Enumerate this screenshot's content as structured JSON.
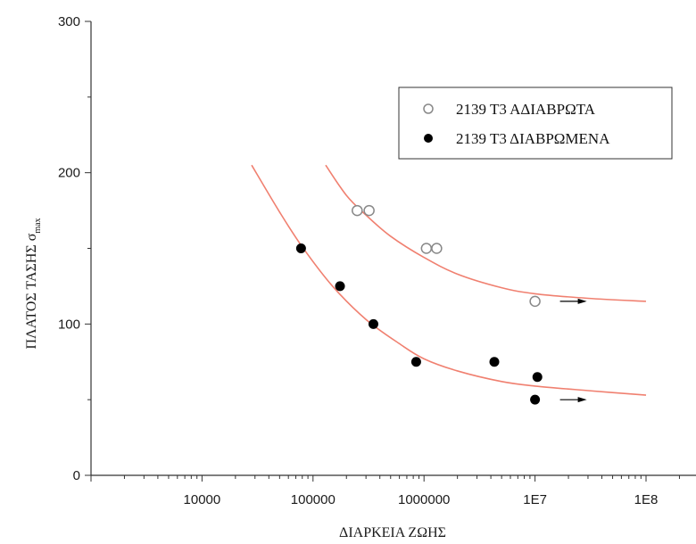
{
  "chart_data": {
    "type": "scatter",
    "xlabel": "ΔΙΑΡΚΕΙΑ ΖΩΗΣ",
    "ylabel": "ΠΛΑΤΟΣ ΤΑΣΗΣ σ",
    "ylabel_sub": "max",
    "x_scale": "log",
    "xlim": [
      1000,
      100000000
    ],
    "ylim": [
      0,
      300
    ],
    "x_ticks": [
      10000,
      100000,
      1000000,
      10000000,
      100000000
    ],
    "x_tick_labels": [
      "10000",
      "100000",
      "1000000",
      "1E7",
      "1E8"
    ],
    "y_ticks": [
      0,
      100,
      200,
      300
    ],
    "y_tick_labels": [
      "0",
      "100",
      "200",
      "300"
    ],
    "grid": false,
    "legend_position": "top-right",
    "series": [
      {
        "name": "2139 Τ3 ΑΔΙΑΒΡΩΤΑ",
        "marker": "open-circle",
        "color": "#888888",
        "points": [
          [
            250000,
            175
          ],
          [
            320000,
            175
          ],
          [
            1050000,
            150
          ],
          [
            1300000,
            150
          ],
          [
            10000000,
            115
          ]
        ],
        "runout_points": [
          [
            10000000,
            115
          ]
        ]
      },
      {
        "name": "2139 Τ3 ΔΙΑΒΡΩΜΕΝΑ",
        "marker": "filled-circle",
        "color": "#000000",
        "points": [
          [
            78000,
            150
          ],
          [
            175000,
            125
          ],
          [
            350000,
            100
          ],
          [
            850000,
            75
          ],
          [
            4300000,
            75
          ],
          [
            10500000,
            65
          ],
          [
            10000000,
            50
          ]
        ],
        "runout_points": [
          [
            10000000,
            50
          ]
        ]
      }
    ],
    "fit_curves": [
      {
        "color": "#f08070",
        "points": [
          [
            130000,
            205
          ],
          [
            200000,
            185
          ],
          [
            300000,
            172
          ],
          [
            500000,
            158
          ],
          [
            1000000,
            144
          ],
          [
            2000000,
            133
          ],
          [
            5000000,
            124
          ],
          [
            10000000,
            120
          ],
          [
            30000000,
            117
          ],
          [
            100000000,
            115
          ]
        ]
      },
      {
        "color": "#f08070",
        "points": [
          [
            28000,
            205
          ],
          [
            50000,
            174
          ],
          [
            80000,
            151
          ],
          [
            150000,
            125
          ],
          [
            300000,
            103
          ],
          [
            600000,
            87
          ],
          [
            1000000,
            77
          ],
          [
            2000000,
            69
          ],
          [
            5000000,
            62
          ],
          [
            10000000,
            59
          ],
          [
            30000000,
            56
          ],
          [
            100000000,
            53
          ]
        ]
      }
    ]
  }
}
